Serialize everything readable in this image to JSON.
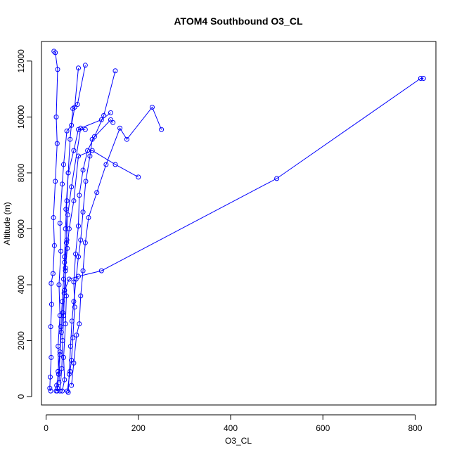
{
  "chart_data": {
    "type": "line",
    "title": "ATOM4 Southbound O3_CL",
    "xlabel": "O3_CL",
    "ylabel": "Altitude (m)",
    "xlim": [
      -10,
      845
    ],
    "ylim": [
      -300,
      12700
    ],
    "x_ticks": [
      0,
      200,
      400,
      600,
      800
    ],
    "y_ticks": [
      0,
      2000,
      4000,
      6000,
      8000,
      10000,
      12000
    ],
    "grid": false,
    "legend": "none",
    "series_color": "#0000FF",
    "markers": "open-circle",
    "series": [
      {
        "points": [
          [
            10,
            200
          ],
          [
            8,
            300
          ],
          [
            9,
            700
          ],
          [
            11,
            1400
          ],
          [
            10,
            2500
          ],
          [
            12,
            3300
          ],
          [
            11,
            4050
          ],
          [
            15,
            4400
          ],
          [
            18,
            5400
          ],
          [
            16,
            6400
          ],
          [
            20,
            7700
          ],
          [
            24,
            9050
          ],
          [
            22,
            10000
          ],
          [
            25,
            11700
          ],
          [
            20,
            12300
          ],
          [
            17,
            12350
          ]
        ]
      },
      {
        "points": [
          [
            22,
            200
          ],
          [
            25,
            300
          ],
          [
            23,
            400
          ],
          [
            27,
            800
          ],
          [
            26,
            1800
          ],
          [
            30,
            2900
          ],
          [
            28,
            4000
          ],
          [
            32,
            5200
          ],
          [
            30,
            6200
          ],
          [
            35,
            7600
          ],
          [
            38,
            8300
          ],
          [
            45,
            9500
          ],
          [
            55,
            9700
          ],
          [
            62,
            10350
          ],
          [
            70,
            11750
          ]
        ]
      },
      {
        "points": [
          [
            35,
            200
          ],
          [
            40,
            600
          ],
          [
            38,
            1400
          ],
          [
            42,
            2600
          ],
          [
            44,
            3600
          ],
          [
            40,
            4800
          ],
          [
            45,
            5600
          ],
          [
            43,
            6700
          ],
          [
            48,
            8000
          ],
          [
            52,
            9200
          ],
          [
            58,
            10300
          ],
          [
            68,
            10450
          ],
          [
            85,
            11850
          ]
        ]
      },
      {
        "points": [
          [
            46,
            200
          ],
          [
            52,
            900
          ],
          [
            55,
            1300
          ],
          [
            58,
            2100
          ],
          [
            62,
            3200
          ],
          [
            60,
            4100
          ],
          [
            64,
            5100
          ],
          [
            70,
            6100
          ],
          [
            72,
            7200
          ],
          [
            80,
            8100
          ],
          [
            90,
            8800
          ],
          [
            105,
            9300
          ],
          [
            125,
            10050
          ],
          [
            150,
            11650
          ]
        ]
      },
      {
        "points": [
          [
            55,
            400
          ],
          [
            60,
            1200
          ],
          [
            66,
            2200
          ],
          [
            72,
            2600
          ],
          [
            75,
            3600
          ],
          [
            80,
            4500
          ],
          [
            85,
            5500
          ],
          [
            92,
            6400
          ],
          [
            110,
            7300
          ],
          [
            130,
            8300
          ],
          [
            160,
            9600
          ],
          [
            175,
            9200
          ],
          [
            230,
            10350
          ],
          [
            250,
            9550
          ]
        ]
      },
      {
        "points": [
          [
            30,
            200
          ],
          [
            34,
            1000
          ],
          [
            36,
            2000
          ],
          [
            38,
            2900
          ],
          [
            40,
            3800
          ],
          [
            42,
            4600
          ],
          [
            46,
            5300
          ],
          [
            50,
            6000
          ],
          [
            60,
            7000
          ],
          [
            70,
            8600
          ],
          [
            100,
            8800
          ],
          [
            150,
            8300
          ],
          [
            200,
            7850
          ]
        ]
      },
      {
        "points": [
          [
            28,
            500
          ],
          [
            30,
            1500
          ],
          [
            32,
            2500
          ],
          [
            35,
            3400
          ],
          [
            38,
            4200
          ],
          [
            40,
            5000
          ],
          [
            42,
            6000
          ],
          [
            45,
            7000
          ],
          [
            48,
            8000
          ],
          [
            60,
            8800
          ],
          [
            70,
            9550
          ],
          [
            85,
            9550
          ]
        ]
      },
      {
        "points": [
          [
            40,
            3800
          ],
          [
            50,
            4200
          ],
          [
            70,
            4300
          ],
          [
            120,
            4500
          ],
          [
            500,
            7800
          ],
          [
            812,
            11380
          ],
          [
            818,
            11380
          ]
        ]
      },
      {
        "points": [
          [
            24,
            200
          ],
          [
            26,
            900
          ],
          [
            30,
            1600
          ],
          [
            33,
            2300
          ],
          [
            36,
            3000
          ],
          [
            39,
            3700
          ],
          [
            42,
            4500
          ],
          [
            44,
            5500
          ],
          [
            47,
            6500
          ],
          [
            55,
            7500
          ],
          [
            75,
            9600
          ],
          [
            120,
            9900
          ],
          [
            140,
            10150
          ]
        ]
      },
      {
        "points": [
          [
            48,
            150
          ],
          [
            50,
            800
          ],
          [
            53,
            1800
          ],
          [
            56,
            2700
          ],
          [
            60,
            3400
          ],
          [
            65,
            4200
          ],
          [
            70,
            5000
          ],
          [
            75,
            5600
          ],
          [
            80,
            6600
          ],
          [
            86,
            7700
          ],
          [
            95,
            8600
          ],
          [
            100,
            9200
          ],
          [
            140,
            9900
          ],
          [
            145,
            9800
          ]
        ]
      }
    ]
  }
}
